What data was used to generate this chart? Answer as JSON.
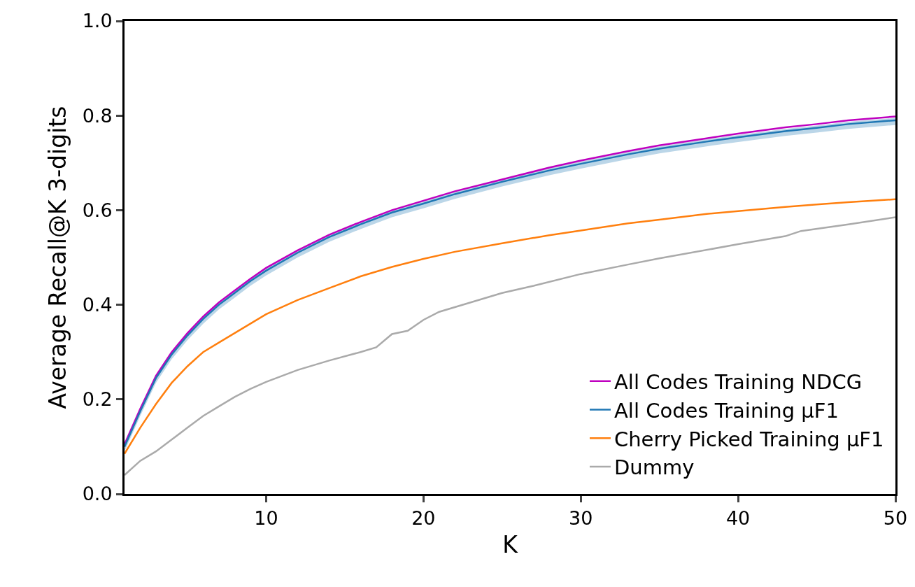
{
  "chart_data": {
    "type": "line",
    "xlabel": "K",
    "ylabel": "Average Recall@K 3-digits",
    "xlim": [
      1,
      50
    ],
    "ylim": [
      0,
      1
    ],
    "xticks": [
      10,
      20,
      30,
      40,
      50
    ],
    "yticks": [
      {
        "value": 0,
        "label": "0.0"
      },
      0.2,
      0.4,
      0.6,
      0.8,
      {
        "value": 1,
        "label": "1.0"
      }
    ],
    "grid": false,
    "legend": "bottom right",
    "marker": "none",
    "line_style": "solid",
    "x": [
      1,
      2,
      3,
      4,
      5,
      6,
      7,
      8,
      9,
      10,
      12,
      14,
      16,
      18,
      20,
      22,
      25,
      28,
      30,
      33,
      35,
      38,
      40,
      43,
      45,
      47,
      50
    ],
    "series": [
      {
        "name": "All Codes Training NDCG",
        "color": "#bf00bf",
        "values": [
          0.105,
          0.18,
          0.25,
          0.3,
          0.34,
          0.375,
          0.405,
          0.43,
          0.455,
          0.478,
          0.515,
          0.548,
          0.575,
          0.6,
          0.62,
          0.64,
          0.665,
          0.69,
          0.705,
          0.725,
          0.737,
          0.752,
          0.762,
          0.775,
          0.782,
          0.79,
          0.798
        ]
      },
      {
        "name": "All Codes Training μF1",
        "color": "#1f77b4",
        "values": [
          0.1,
          0.175,
          0.245,
          0.295,
          0.335,
          0.37,
          0.4,
          0.425,
          0.45,
          0.472,
          0.51,
          0.543,
          0.57,
          0.595,
          0.614,
          0.634,
          0.66,
          0.684,
          0.698,
          0.718,
          0.73,
          0.745,
          0.754,
          0.767,
          0.774,
          0.782,
          0.79
        ],
        "lower": [
          0.09,
          0.165,
          0.235,
          0.285,
          0.325,
          0.36,
          0.39,
          0.415,
          0.44,
          0.462,
          0.5,
          0.533,
          0.56,
          0.585,
          0.604,
          0.624,
          0.65,
          0.674,
          0.688,
          0.708,
          0.72,
          0.735,
          0.744,
          0.757,
          0.764,
          0.772,
          0.78
        ],
        "upper": [
          0.105,
          0.18,
          0.25,
          0.3,
          0.34,
          0.375,
          0.405,
          0.43,
          0.455,
          0.477,
          0.515,
          0.548,
          0.575,
          0.6,
          0.619,
          0.639,
          0.665,
          0.689,
          0.703,
          0.723,
          0.735,
          0.75,
          0.759,
          0.772,
          0.779,
          0.787,
          0.795
        ]
      },
      {
        "name": "Cherry Picked Training μF1",
        "color": "#ff7f0e",
        "values": [
          0.085,
          0.14,
          0.19,
          0.235,
          0.27,
          0.3,
          0.32,
          0.34,
          0.36,
          0.38,
          0.41,
          0.435,
          0.46,
          0.48,
          0.497,
          0.512,
          0.53,
          0.547,
          0.557,
          0.572,
          0.58,
          0.592,
          0.598,
          0.607,
          0.612,
          0.617,
          0.623
        ]
      },
      {
        "name": "Dummy",
        "color": "#aaaaaa",
        "x": [
          1,
          2,
          3,
          4,
          5,
          6,
          7,
          8,
          9,
          10,
          12,
          14,
          16,
          17,
          18,
          19,
          20,
          21,
          23,
          25,
          27,
          30,
          33,
          35,
          40,
          43,
          44,
          47,
          50
        ],
        "values": [
          0.04,
          0.07,
          0.09,
          0.115,
          0.14,
          0.165,
          0.185,
          0.205,
          0.222,
          0.237,
          0.262,
          0.282,
          0.3,
          0.31,
          0.338,
          0.345,
          0.368,
          0.385,
          0.405,
          0.425,
          0.44,
          0.465,
          0.485,
          0.498,
          0.528,
          0.545,
          0.556,
          0.57,
          0.585
        ]
      }
    ]
  }
}
